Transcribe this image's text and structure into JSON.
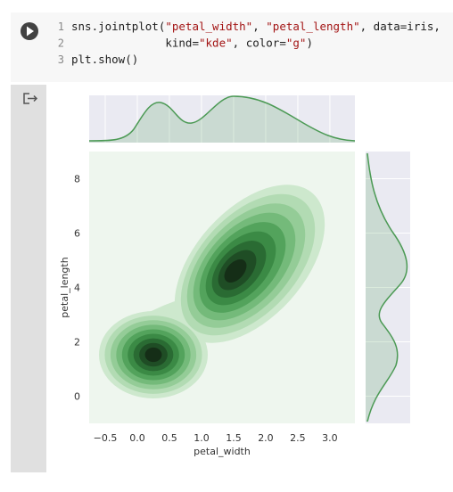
{
  "code": {
    "line_numbers": [
      1,
      2,
      3
    ],
    "lines": [
      [
        "sns.jointplot(",
        "\"petal_width\"",
        ", ",
        "\"petal_length\"",
        ", data=iris,"
      ],
      [
        "              kind=",
        "\"kde\"",
        ", color=",
        "\"g\"",
        ")"
      ],
      [
        "plt.show()"
      ]
    ]
  },
  "chart_data": {
    "type": "kde",
    "color": "#4c9a55",
    "xlabel": "petal_width",
    "ylabel": "petal_length",
    "xlim": [
      -0.75,
      3.39
    ],
    "ylim": [
      -1.0,
      9.0
    ],
    "xticks": [
      {
        "value": -0.5,
        "label": "−0.5"
      },
      {
        "value": 0,
        "label": "0.0"
      },
      0.5,
      {
        "value": 1,
        "label": "1.0"
      },
      1.5,
      {
        "value": 2,
        "label": "2.0"
      },
      2.5,
      {
        "value": 3,
        "label": "3.0"
      }
    ],
    "yticks": [
      0,
      2,
      4,
      6,
      8
    ]
  }
}
